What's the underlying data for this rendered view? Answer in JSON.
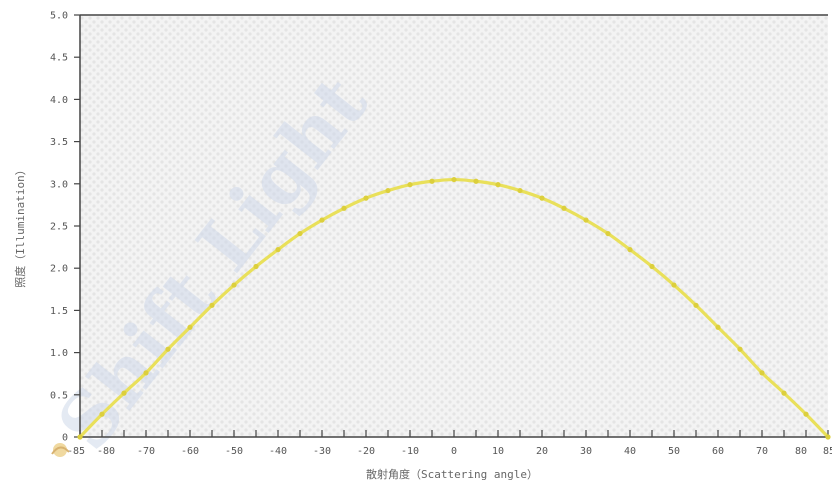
{
  "chart_data": {
    "type": "line",
    "xlabel": "散射角度（Scattering angle）",
    "ylabel": "照度（Illumination）",
    "xlim": [
      -85,
      85
    ],
    "ylim": [
      0,
      5.0
    ],
    "x_ticks": [
      -85,
      -80,
      -70,
      -60,
      -50,
      -40,
      -30,
      -20,
      -10,
      0,
      10,
      20,
      30,
      40,
      50,
      60,
      70,
      80,
      85
    ],
    "y_ticks": [
      "0",
      "0.5",
      "1.0",
      "1.5",
      "2.0",
      "2.5",
      "3.0",
      "3.5",
      "4.0",
      "4.5",
      "5.0"
    ],
    "grid": false,
    "series": [
      {
        "color": "#e9e05a",
        "x": [
          -85,
          -80,
          -75,
          -70,
          -65,
          -60,
          -55,
          -50,
          -45,
          -40,
          -35,
          -30,
          -25,
          -20,
          -15,
          -10,
          -5,
          0,
          5,
          10,
          15,
          20,
          25,
          30,
          35,
          40,
          45,
          50,
          55,
          60,
          65,
          70,
          75,
          80,
          85
        ],
        "y": [
          0.0,
          0.27,
          0.52,
          0.76,
          1.04,
          1.3,
          1.56,
          1.8,
          2.02,
          2.22,
          2.41,
          2.57,
          2.71,
          2.83,
          2.92,
          2.99,
          3.03,
          3.05,
          3.03,
          2.99,
          2.92,
          2.83,
          2.71,
          2.57,
          2.41,
          2.22,
          2.02,
          1.8,
          1.56,
          1.3,
          1.04,
          0.76,
          0.52,
          0.27,
          0.0
        ]
      }
    ]
  },
  "watermark": {
    "text": "Shift Light",
    "color": "#cfd9ea"
  }
}
